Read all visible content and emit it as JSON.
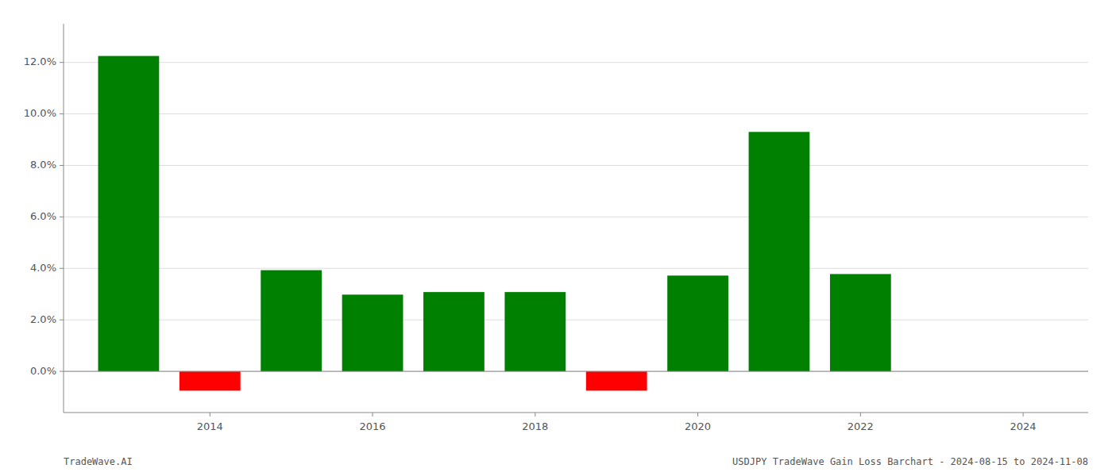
{
  "chart_data": {
    "type": "bar",
    "x": [
      2013,
      2014,
      2015,
      2016,
      2017,
      2018,
      2019,
      2020,
      2021,
      2022,
      2023
    ],
    "values": [
      0.1225,
      -0.0075,
      0.0393,
      0.0298,
      0.0308,
      0.0308,
      -0.0075,
      0.0372,
      0.093,
      0.0378,
      0.0
    ],
    "colors": [
      "#008000",
      "#ff0000",
      "#008000",
      "#008000",
      "#008000",
      "#008000",
      "#ff0000",
      "#008000",
      "#008000",
      "#008000",
      "#008000"
    ],
    "xlim": [
      2012.2,
      2024.8
    ],
    "xticks": [
      2014,
      2016,
      2018,
      2020,
      2022,
      2024
    ],
    "ylim": [
      -0.016,
      0.135
    ],
    "yticks": [
      {
        "value": 0.0,
        "label": "0.0%"
      },
      {
        "value": 0.02,
        "label": "2.0%"
      },
      {
        "value": 0.04,
        "label": "4.0%"
      },
      {
        "value": 0.06,
        "label": "6.0%"
      },
      {
        "value": 0.08,
        "label": "8.0%"
      },
      {
        "value": 0.1,
        "label": "10.0%"
      },
      {
        "value": 0.12,
        "label": "12.0%"
      }
    ],
    "grid": true,
    "annotations": [
      "TradeWave.AI",
      "USDJPY TradeWave Gain Loss Barchart - 2024-08-15 to 2024-11-08"
    ]
  }
}
